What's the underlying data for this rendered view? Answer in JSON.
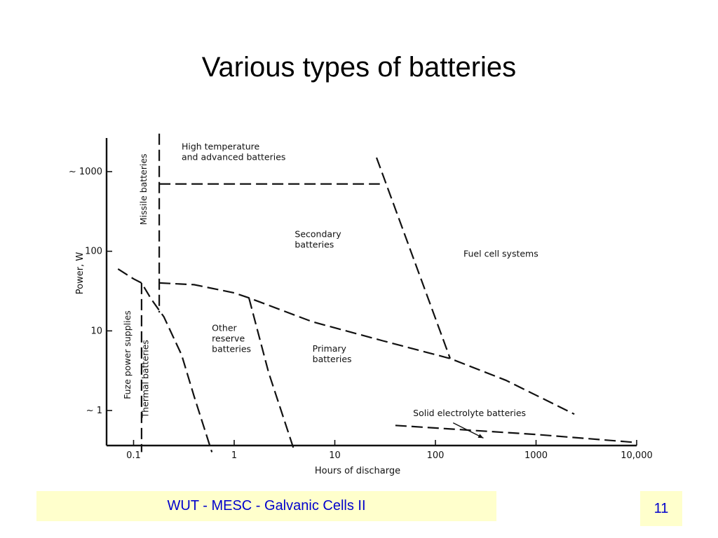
{
  "slide": {
    "title": "Various types of batteries",
    "footer": "WUT - MESC - Galvanic Cells II",
    "page_number": "11"
  },
  "colors": {
    "footer_bg": "#ffffcc",
    "footer_text": "#0000cc",
    "ink": "#111111"
  },
  "chart_data": {
    "type": "line",
    "xlabel": "Hours of discharge",
    "ylabel": "Power, W",
    "x_scale": "log",
    "y_scale": "log",
    "xlim": [
      0.07,
      12000
    ],
    "ylim": [
      0.3,
      3000
    ],
    "x_ticks": [
      {
        "value": 0.1,
        "label": "0.1"
      },
      {
        "value": 1,
        "label": "1"
      },
      {
        "value": 10,
        "label": "10"
      },
      {
        "value": 100,
        "label": "100"
      },
      {
        "value": 1000,
        "label": "1000"
      },
      {
        "value": 10000,
        "label": "10,000"
      }
    ],
    "y_ticks": [
      {
        "value": 1,
        "label": "~ 1"
      },
      {
        "value": 10,
        "label": "10"
      },
      {
        "value": 100,
        "label": "100"
      },
      {
        "value": 1000,
        "label": "~ 1000"
      }
    ],
    "grid": false,
    "legend": "none",
    "boundaries": [
      {
        "name": "fuze-boundary",
        "points": [
          [
            0.12,
            40
          ],
          [
            0.12,
            0.3
          ]
        ]
      },
      {
        "name": "missile-boundary",
        "points": [
          [
            0.18,
            3000
          ],
          [
            0.18,
            17
          ]
        ]
      },
      {
        "name": "high-temp-lower-boundary",
        "points": [
          [
            0.18,
            700
          ],
          [
            28,
            700
          ]
        ]
      },
      {
        "name": "fuel-cell-boundary",
        "points": [
          [
            26,
            1500
          ],
          [
            140,
            4.5
          ]
        ]
      },
      {
        "name": "secondary-primary-boundary",
        "points": [
          [
            0.18,
            40
          ],
          [
            0.4,
            38
          ],
          [
            1,
            30
          ],
          [
            1.4,
            26
          ],
          [
            6,
            13
          ],
          [
            30,
            7.5
          ],
          [
            140,
            4.5
          ],
          [
            500,
            2.4
          ],
          [
            2400,
            0.9
          ]
        ]
      },
      {
        "name": "thermal-boundary",
        "points": [
          [
            0.07,
            60
          ],
          [
            0.1,
            45
          ],
          [
            0.12,
            40
          ],
          [
            0.15,
            25
          ],
          [
            0.2,
            15
          ],
          [
            0.3,
            5
          ],
          [
            0.4,
            1.5
          ],
          [
            0.6,
            0.3
          ]
        ]
      },
      {
        "name": "other-reserve-boundary",
        "points": [
          [
            1.4,
            26
          ],
          [
            2.2,
            3
          ],
          [
            4,
            0.3
          ]
        ]
      },
      {
        "name": "solid-electrolyte-boundary",
        "points": [
          [
            40,
            0.65
          ],
          [
            1000,
            0.5
          ],
          [
            9000,
            0.4
          ]
        ]
      }
    ],
    "region_labels": [
      {
        "lines": [
          "High temperature",
          "and advanced batteries"
        ],
        "x": 0.3,
        "y": 1900
      },
      {
        "lines": [
          "Missile batteries"
        ],
        "x": 0.135,
        "y": 600,
        "rotated": true
      },
      {
        "lines": [
          "Secondary",
          "batteries"
        ],
        "x": 4,
        "y": 150
      },
      {
        "lines": [
          "Fuel cell systems"
        ],
        "x": 190,
        "y": 85
      },
      {
        "lines": [
          "Fuze power supplies"
        ],
        "x": 0.093,
        "y": 5,
        "rotated": true
      },
      {
        "lines": [
          "Thermal batteries"
        ],
        "x": 0.14,
        "y": 2.5,
        "rotated": true
      },
      {
        "lines": [
          "Other",
          "reserve",
          "batteries"
        ],
        "x": 0.6,
        "y": 10
      },
      {
        "lines": [
          "Primary",
          "batteries"
        ],
        "x": 6,
        "y": 5.5
      },
      {
        "lines": [
          "Solid electrolyte batteries"
        ],
        "x": 60,
        "y": 0.85
      }
    ],
    "annotation_arrow": {
      "from": [
        150,
        0.7
      ],
      "to": [
        300,
        0.45
      ]
    }
  }
}
